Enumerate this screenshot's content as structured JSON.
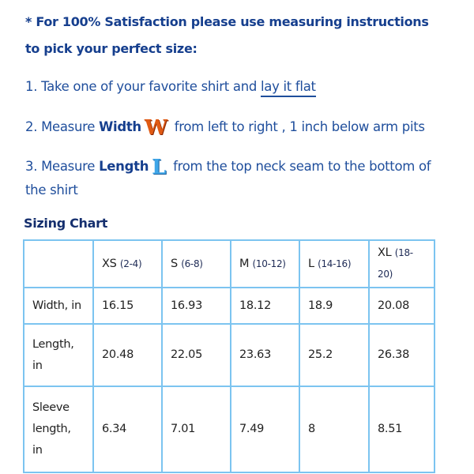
{
  "intro": {
    "line1": "* For 100% Satisfaction please use measuring instructions",
    "line2": "to pick your perfect size:"
  },
  "steps": {
    "s1_prefix": "1. Take one of your favorite shirt and ",
    "s1_link": "lay it flat",
    "s2_prefix": "2. Measure ",
    "s2_bold": "Width",
    "s2_icon": "W",
    "s2_suffix": " from left to right , 1 inch below arm pits",
    "s3_prefix": "3. Measure ",
    "s3_bold": "Length",
    "s3_icon": "L",
    "s3_suffix": " from the top neck seam to the bottom of",
    "s3_line2": "the shirt"
  },
  "colors": {
    "text": "#1f4e9c",
    "border": "#7cc4f0",
    "w_icon": "#e05a14",
    "l_icon": "#3fa6e8"
  },
  "chart_data": {
    "type": "table",
    "title": "Sizing Chart",
    "columns": [
      {
        "size": "XS",
        "range": "(2-4)"
      },
      {
        "size": "S",
        "range": "(6-8)"
      },
      {
        "size": "M",
        "range": "(10-12)"
      },
      {
        "size": "L",
        "range": "(14-16)"
      },
      {
        "size": "XL",
        "range": "(18-20)"
      }
    ],
    "rows": [
      {
        "label": "Width, in",
        "values": [
          "16.15",
          "16.93",
          "18.12",
          "18.9",
          "20.08"
        ]
      },
      {
        "label": "Length, in",
        "values": [
          "20.48",
          "22.05",
          "23.63",
          "25.2",
          "26.38"
        ]
      },
      {
        "label": "Sleeve length, in",
        "values": [
          "6.34",
          "7.01",
          "7.49",
          "8",
          "8.51"
        ]
      }
    ]
  }
}
